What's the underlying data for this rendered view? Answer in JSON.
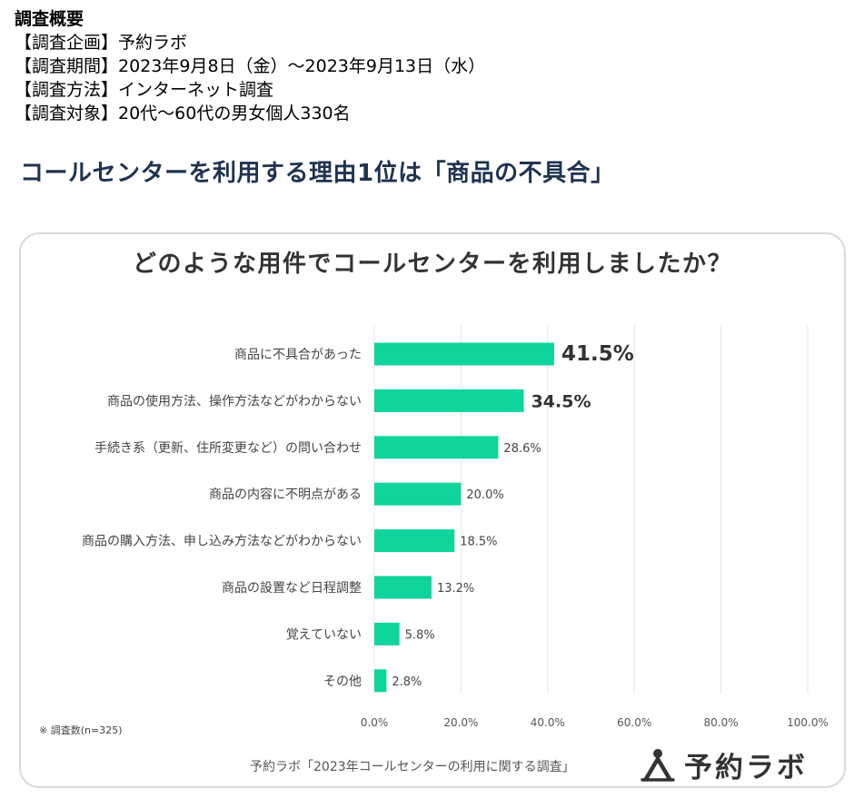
{
  "survey": {
    "title": "調査概要",
    "lines": [
      "【調査企画】予約ラボ",
      "【調査期間】2023年9月8日（金）～2023年9月13日（水）",
      "【調査方法】インターネット調査",
      "【調査対象】20代～60代の男女個人330名"
    ]
  },
  "headline": "コールセンターを利用する理由1位は「商品の不具合」",
  "chart_data": {
    "type": "bar",
    "orientation": "horizontal",
    "title": "どのような用件でコールセンターを利用しましたか？",
    "categories": [
      "商品に不具合があった",
      "商品の使用方法、操作方法などがわからない",
      "手続き系（更新、住所変更など）の問い合わせ",
      "商品の内容に不明点がある",
      "商品の購入方法、申し込み方法などがわからない",
      "商品の設置など日程調整",
      "覚えていない",
      "その他"
    ],
    "values": [
      41.5,
      34.5,
      28.6,
      20.0,
      18.5,
      13.2,
      5.8,
      2.8
    ],
    "value_labels": [
      "41.5%",
      "34.5%",
      "28.6%",
      "20.0%",
      "18.5%",
      "13.2%",
      "5.8%",
      "2.8%"
    ],
    "highlight_top": 2,
    "xlim": [
      0,
      100
    ],
    "xticks": [
      0,
      20,
      40,
      60,
      80,
      100
    ],
    "xtick_labels": [
      "0.0%",
      "20.0%",
      "40.0%",
      "60.0%",
      "80.0%",
      "100.0%"
    ],
    "grid": true,
    "bar_color": "#0fd49b",
    "grid_color": "#e6e6e6"
  },
  "note": "※ 調査数(n=325)",
  "source": "予約ラボ「2023年コールセンターの利用に関する調査」",
  "brand": {
    "name": "予約ラボ",
    "icon": "person-logo-icon"
  }
}
